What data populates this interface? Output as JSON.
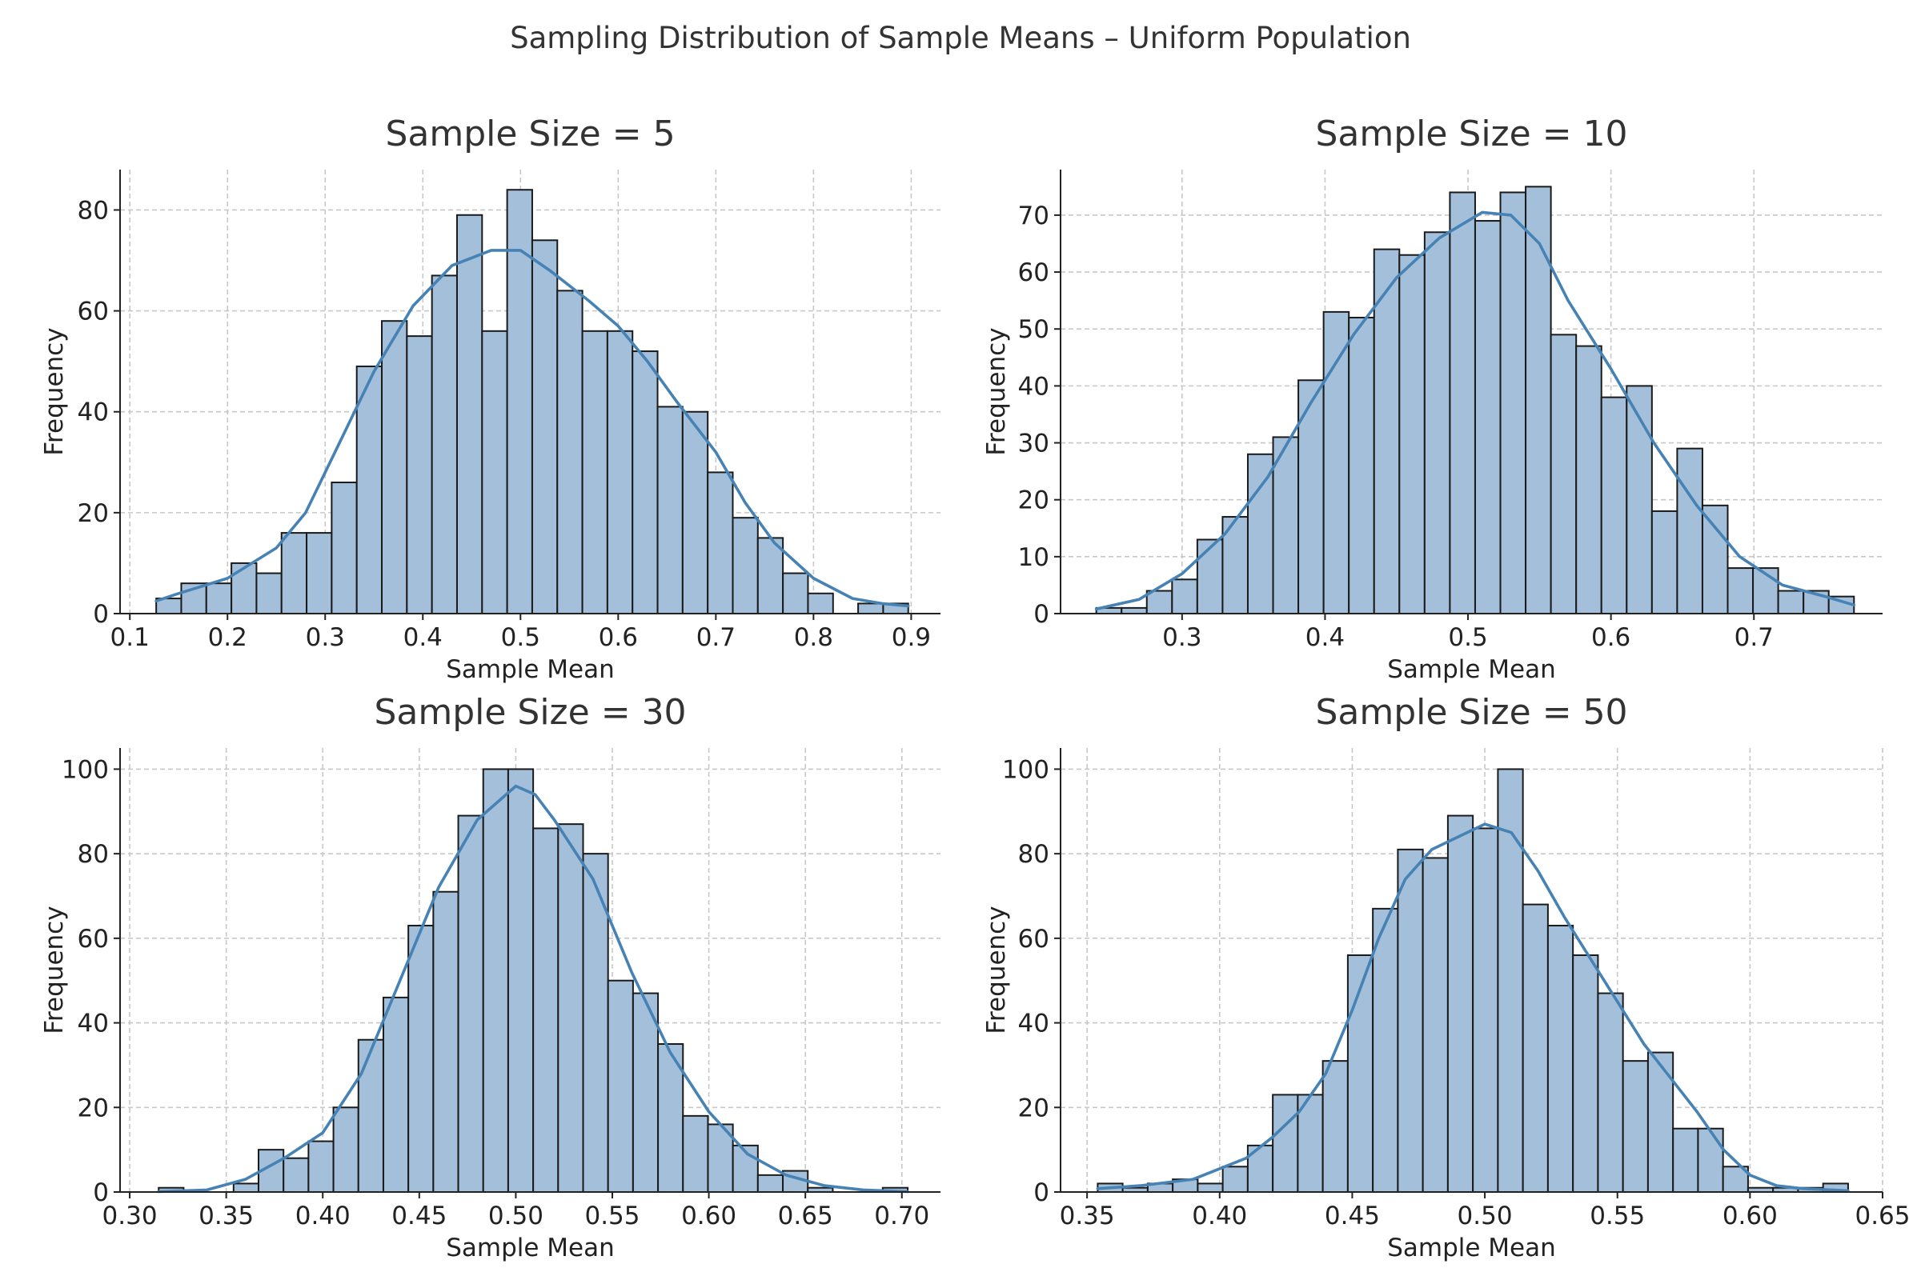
{
  "figure": {
    "suptitle": "Sampling Distribution of Sample Means – Uniform Population"
  },
  "colors": {
    "bar_fill": "#a3bfd9",
    "bar_edge": "#1a1a1a",
    "kde_line": "#4682b4",
    "grid": "#c8c8c8",
    "axis": "#222222",
    "text": "#333333"
  },
  "chart_data": [
    {
      "type": "bar",
      "title": "Sample Size = 5",
      "xlabel": "Sample Mean",
      "ylabel": "Frequency",
      "grid": true,
      "xlim": [
        0.09,
        0.93
      ],
      "ylim": [
        0,
        88
      ],
      "xticks": [
        0.1,
        0.2,
        0.3,
        0.4,
        0.5,
        0.6,
        0.7,
        0.8,
        0.9
      ],
      "xtick_labels": [
        "0.1",
        "0.2",
        "0.3",
        "0.4",
        "0.5",
        "0.6",
        "0.7",
        "0.8",
        "0.9"
      ],
      "yticks": [
        0,
        20,
        40,
        60,
        80
      ],
      "ytick_labels": [
        "0",
        "20",
        "40",
        "60",
        "80"
      ],
      "bin_start": 0.127,
      "bin_end": 0.897,
      "values": [
        3,
        6,
        6,
        10,
        8,
        16,
        16,
        26,
        49,
        58,
        55,
        67,
        79,
        56,
        84,
        74,
        64,
        56,
        56,
        52,
        41,
        40,
        28,
        19,
        15,
        8,
        4,
        0,
        2,
        2
      ],
      "kde": [
        [
          0.127,
          2.5
        ],
        [
          0.15,
          4
        ],
        [
          0.2,
          7
        ],
        [
          0.25,
          13
        ],
        [
          0.28,
          20
        ],
        [
          0.31,
          32
        ],
        [
          0.35,
          48
        ],
        [
          0.39,
          61
        ],
        [
          0.43,
          69
        ],
        [
          0.47,
          72
        ],
        [
          0.5,
          72
        ],
        [
          0.53,
          68
        ],
        [
          0.57,
          62
        ],
        [
          0.6,
          57
        ],
        [
          0.63,
          50
        ],
        [
          0.66,
          42
        ],
        [
          0.7,
          32
        ],
        [
          0.73,
          22
        ],
        [
          0.76,
          14
        ],
        [
          0.8,
          7
        ],
        [
          0.84,
          3
        ],
        [
          0.87,
          2
        ],
        [
          0.897,
          1.5
        ]
      ]
    },
    {
      "type": "bar",
      "title": "Sample Size = 10",
      "xlabel": "Sample Mean",
      "ylabel": "Frequency",
      "grid": true,
      "xlim": [
        0.215,
        0.79
      ],
      "ylim": [
        0,
        78
      ],
      "xticks": [
        0.3,
        0.4,
        0.5,
        0.6,
        0.7
      ],
      "xtick_labels": [
        "0.3",
        "0.4",
        "0.5",
        "0.6",
        "0.7"
      ],
      "yticks": [
        0,
        10,
        20,
        30,
        40,
        50,
        60,
        70
      ],
      "ytick_labels": [
        "0",
        "10",
        "20",
        "30",
        "40",
        "50",
        "60",
        "70"
      ],
      "bin_start": 0.24,
      "bin_end": 0.77,
      "values": [
        1,
        1,
        4,
        6,
        13,
        17,
        28,
        31,
        41,
        53,
        52,
        64,
        63,
        67,
        74,
        69,
        74,
        75,
        49,
        47,
        38,
        40,
        18,
        29,
        19,
        8,
        8,
        4,
        4,
        3
      ],
      "kde": [
        [
          0.24,
          0.8
        ],
        [
          0.27,
          2.5
        ],
        [
          0.3,
          7
        ],
        [
          0.33,
          14
        ],
        [
          0.36,
          24
        ],
        [
          0.39,
          37
        ],
        [
          0.42,
          49
        ],
        [
          0.45,
          59
        ],
        [
          0.48,
          66
        ],
        [
          0.51,
          70.5
        ],
        [
          0.53,
          70
        ],
        [
          0.55,
          65
        ],
        [
          0.57,
          55
        ],
        [
          0.6,
          43
        ],
        [
          0.63,
          30
        ],
        [
          0.66,
          19
        ],
        [
          0.69,
          10
        ],
        [
          0.72,
          5
        ],
        [
          0.75,
          3
        ],
        [
          0.77,
          1.5
        ]
      ]
    },
    {
      "type": "bar",
      "title": "Sample Size = 30",
      "xlabel": "Sample Mean",
      "ylabel": "Frequency",
      "grid": true,
      "xlim": [
        0.295,
        0.72
      ],
      "ylim": [
        0,
        105
      ],
      "xticks": [
        0.3,
        0.35,
        0.4,
        0.45,
        0.5,
        0.55,
        0.6,
        0.65,
        0.7
      ],
      "xtick_labels": [
        "0.30",
        "0.35",
        "0.40",
        "0.45",
        "0.50",
        "0.55",
        "0.60",
        "0.65",
        "0.70"
      ],
      "yticks": [
        0,
        20,
        40,
        60,
        80,
        100
      ],
      "ytick_labels": [
        "0",
        "20",
        "40",
        "60",
        "80",
        "100"
      ],
      "bin_start": 0.315,
      "bin_end": 0.703,
      "values": [
        1,
        0,
        0,
        2,
        10,
        8,
        12,
        20,
        36,
        46,
        63,
        71,
        89,
        100,
        100,
        86,
        87,
        80,
        50,
        47,
        35,
        18,
        16,
        11,
        4,
        5,
        1,
        0,
        0,
        1
      ],
      "kde": [
        [
          0.315,
          0.1
        ],
        [
          0.34,
          0.5
        ],
        [
          0.36,
          3
        ],
        [
          0.38,
          8
        ],
        [
          0.4,
          14
        ],
        [
          0.42,
          28
        ],
        [
          0.44,
          50
        ],
        [
          0.46,
          72
        ],
        [
          0.48,
          88
        ],
        [
          0.5,
          96
        ],
        [
          0.51,
          94
        ],
        [
          0.52,
          88
        ],
        [
          0.54,
          74
        ],
        [
          0.56,
          52
        ],
        [
          0.58,
          33
        ],
        [
          0.6,
          19
        ],
        [
          0.62,
          9
        ],
        [
          0.64,
          4
        ],
        [
          0.66,
          1.5
        ],
        [
          0.68,
          0.5
        ],
        [
          0.703,
          0.1
        ]
      ]
    },
    {
      "type": "bar",
      "title": "Sample Size = 50",
      "xlabel": "Sample Mean",
      "ylabel": "Frequency",
      "grid": true,
      "xlim": [
        0.34,
        0.65
      ],
      "ylim": [
        0,
        105
      ],
      "xticks": [
        0.35,
        0.4,
        0.45,
        0.5,
        0.55,
        0.6,
        0.65
      ],
      "xtick_labels": [
        "0.35",
        "0.40",
        "0.45",
        "0.50",
        "0.55",
        "0.60",
        "0.65"
      ],
      "yticks": [
        0,
        20,
        40,
        60,
        80,
        100
      ],
      "ytick_labels": [
        "0",
        "20",
        "40",
        "60",
        "80",
        "100"
      ],
      "bin_start": 0.354,
      "bin_end": 0.637,
      "values": [
        2,
        1,
        2,
        3,
        2,
        6,
        11,
        23,
        23,
        31,
        56,
        67,
        81,
        79,
        89,
        86,
        100,
        68,
        63,
        56,
        47,
        31,
        33,
        15,
        15,
        6,
        1,
        1,
        1,
        2
      ],
      "kde": [
        [
          0.354,
          0.8
        ],
        [
          0.37,
          1.5
        ],
        [
          0.39,
          3
        ],
        [
          0.41,
          8
        ],
        [
          0.42,
          13
        ],
        [
          0.43,
          19
        ],
        [
          0.44,
          28
        ],
        [
          0.45,
          43
        ],
        [
          0.46,
          60
        ],
        [
          0.47,
          74
        ],
        [
          0.48,
          81
        ],
        [
          0.49,
          84
        ],
        [
          0.5,
          87
        ],
        [
          0.51,
          85
        ],
        [
          0.52,
          76
        ],
        [
          0.53,
          65
        ],
        [
          0.54,
          55
        ],
        [
          0.55,
          45
        ],
        [
          0.56,
          35
        ],
        [
          0.57,
          27
        ],
        [
          0.58,
          19
        ],
        [
          0.59,
          10
        ],
        [
          0.6,
          4
        ],
        [
          0.61,
          1.5
        ],
        [
          0.62,
          0.8
        ],
        [
          0.637,
          0.3
        ]
      ]
    }
  ]
}
